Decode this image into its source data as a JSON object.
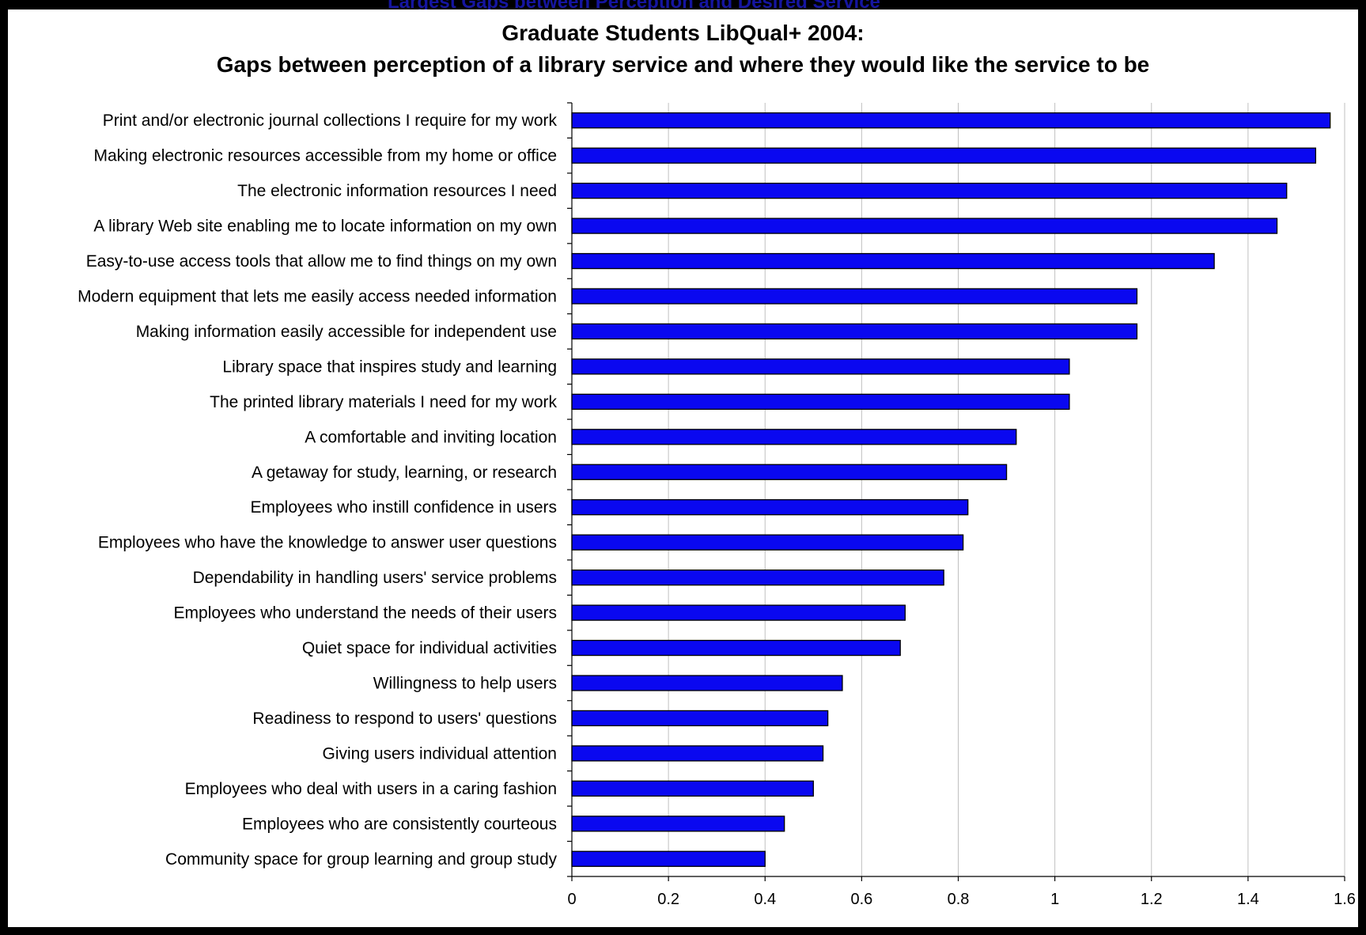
{
  "header_strip_text": "Largest Gaps between Perception and Desired Service",
  "colors": {
    "bar_fill": "#0a08f0",
    "bar_stroke": "#000000",
    "gridline": "#c0c0c0",
    "header_text": "#1515a0"
  },
  "chart_data": {
    "type": "bar",
    "orientation": "horizontal",
    "title": "Graduate Students LibQual+ 2004:",
    "subtitle": "Gaps between perception of a library service and where they would like the service to be",
    "xlabel": "",
    "ylabel": "",
    "xlim": [
      0,
      1.6
    ],
    "x_ticks": [
      "0",
      "0.2",
      "0.4",
      "0.6",
      "0.8",
      "1",
      "1.2",
      "1.4",
      "1.6"
    ],
    "grid": "vertical",
    "legend": "none",
    "categories": [
      "Print and/or electronic journal collections I require for my work",
      "Making electronic resources accessible from my home or office",
      "The electronic information resources I need",
      "A library Web site enabling me to locate information on my own",
      "Easy-to-use access tools that allow me to find things on my own",
      "Modern equipment that lets me easily access needed information",
      "Making information easily accessible for independent use",
      "Library space that inspires study and learning",
      "The printed library materials I need for my work",
      "A comfortable and inviting location",
      "A getaway for study, learning, or research",
      "Employees who instill confidence in users",
      "Employees who have the knowledge to answer user questions",
      "Dependability in handling users' service problems",
      "Employees who understand the needs of their users",
      "Quiet space for individual activities",
      "Willingness to help users",
      "Readiness to respond to users' questions",
      "Giving users individual attention",
      "Employees who deal with users in a caring fashion",
      "Employees who are consistently courteous",
      "Community space for group learning and group study"
    ],
    "values": [
      1.57,
      1.54,
      1.48,
      1.46,
      1.33,
      1.17,
      1.17,
      1.03,
      1.03,
      0.92,
      0.9,
      0.82,
      0.81,
      0.77,
      0.69,
      0.68,
      0.56,
      0.53,
      0.52,
      0.5,
      0.44,
      0.4
    ]
  }
}
